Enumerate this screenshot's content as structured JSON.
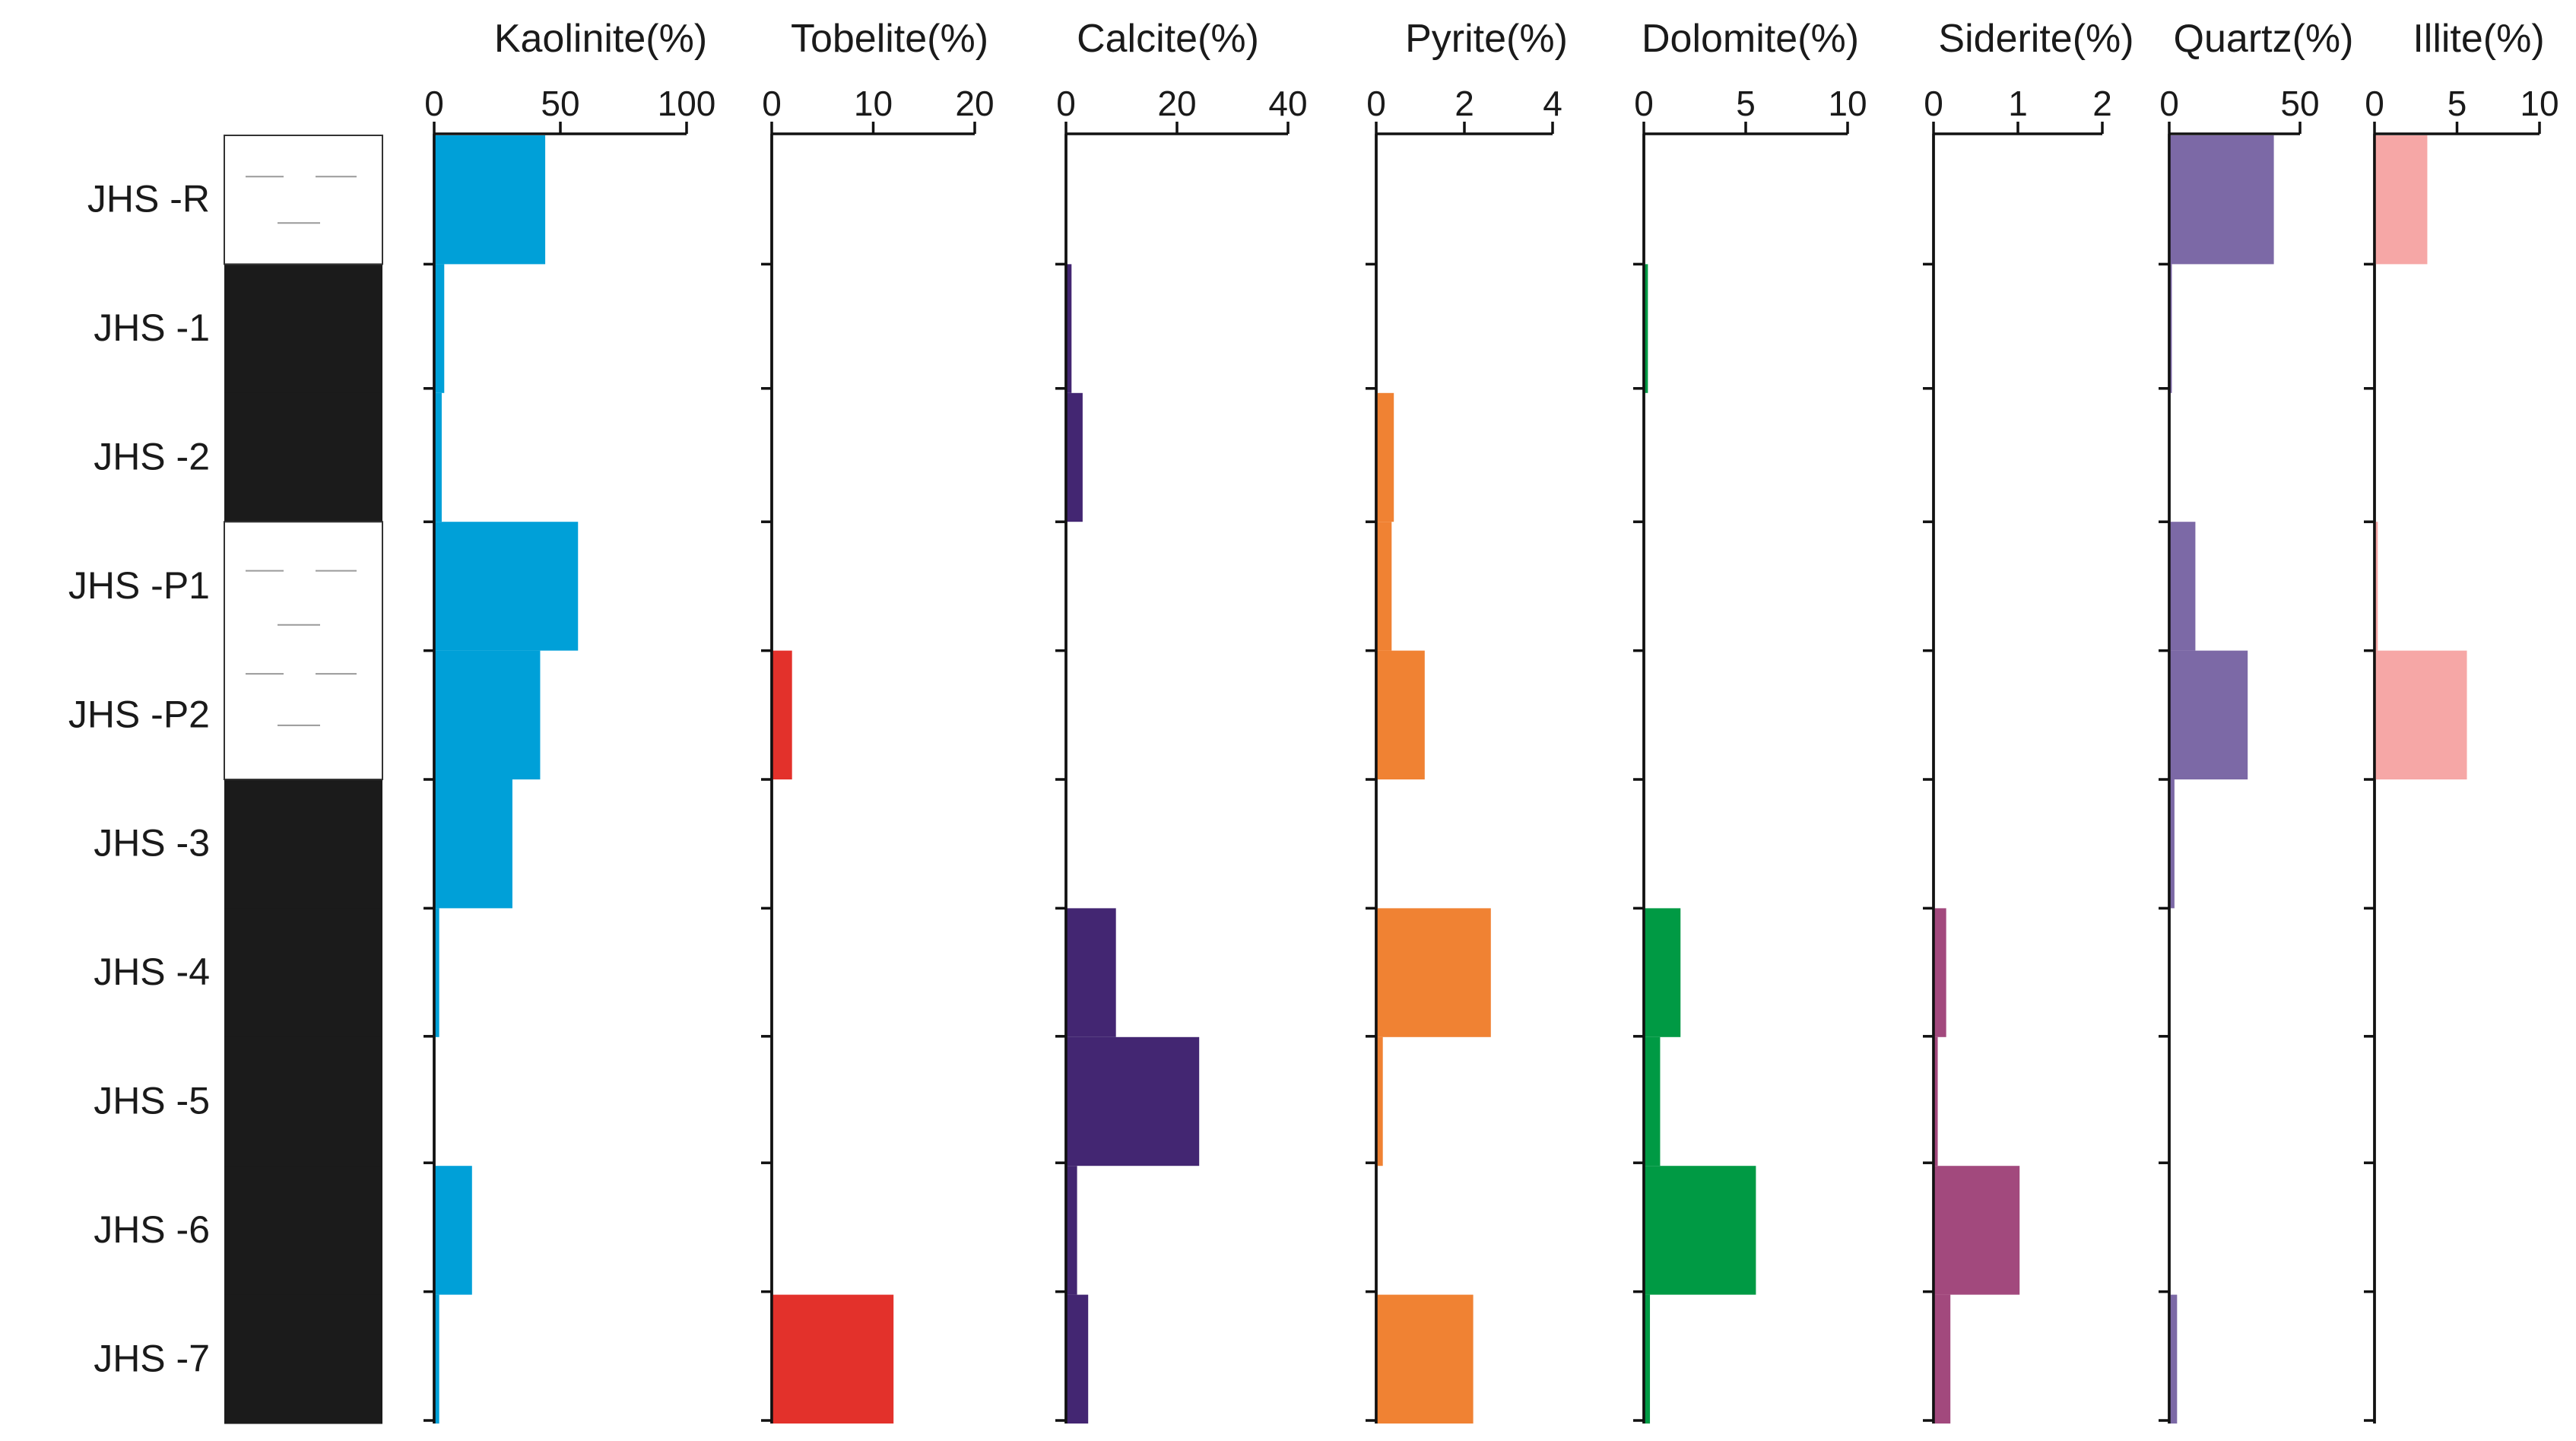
{
  "chart_data": {
    "type": "bar",
    "orientation": "horizontal",
    "samples": [
      "JHS -R",
      "JHS -1",
      "JHS -2",
      "JHS -P1",
      "JHS -P2",
      "JHS -3",
      "JHS -4",
      "JHS -5",
      "JHS -6",
      "JHS -7"
    ],
    "lithology": [
      "mudstone",
      "coal",
      "coal",
      "mudstone",
      "mudstone",
      "coal",
      "coal",
      "coal",
      "coal",
      "coal"
    ],
    "series": [
      {
        "name": "Kaolinite(%)",
        "color": "#00a0d8",
        "xlim": [
          0,
          100
        ],
        "ticks": [
          "0",
          "50",
          "100"
        ],
        "values": [
          44,
          4,
          3,
          57,
          42,
          31,
          2,
          0,
          15,
          2
        ]
      },
      {
        "name": "Tobelite(%)",
        "color": "#e3312b",
        "xlim": [
          0,
          20
        ],
        "ticks": [
          "0",
          "10",
          "20"
        ],
        "values": [
          0,
          0,
          0,
          0,
          2,
          0,
          0,
          0,
          0,
          12
        ]
      },
      {
        "name": "Calcite(%)",
        "color": "#432672",
        "xlim": [
          0,
          40
        ],
        "ticks": [
          "0",
          "20",
          "40"
        ],
        "values": [
          0,
          1,
          3,
          0,
          0,
          0,
          9,
          24,
          2,
          4
        ]
      },
      {
        "name": "Pyrite(%)",
        "color": "#f08233",
        "xlim": [
          0,
          4
        ],
        "ticks": [
          "0",
          "2",
          "4"
        ],
        "values": [
          0,
          0,
          0.4,
          0.35,
          1.1,
          0,
          2.6,
          0.15,
          0,
          2.2
        ]
      },
      {
        "name": "Dolomite(%)",
        "color": "#009a44",
        "xlim": [
          0,
          10
        ],
        "ticks": [
          "0",
          "5",
          "10"
        ],
        "values": [
          0,
          0.2,
          0,
          0,
          0,
          0,
          1.8,
          0.8,
          5.5,
          0.3
        ]
      },
      {
        "name": "Siderite(%)",
        "color": "#a2497d",
        "xlim": [
          0,
          2
        ],
        "ticks": [
          "0",
          "1",
          "2"
        ],
        "values": [
          0,
          0,
          0,
          0,
          0,
          0,
          0.15,
          0.05,
          1.02,
          0.2
        ]
      },
      {
        "name": "Quartz(%)",
        "color": "#7c69a6",
        "xlim": [
          0,
          50
        ],
        "ticks": [
          "0",
          "50"
        ],
        "values": [
          40,
          1,
          0,
          10,
          30,
          2,
          0,
          0,
          0,
          3
        ]
      },
      {
        "name": "Illite(%)",
        "color": "#f6a7a6",
        "xlim": [
          0,
          10
        ],
        "ticks": [
          "0",
          "5",
          "10"
        ],
        "values": [
          3.2,
          0,
          0,
          0.2,
          5.6,
          0,
          0,
          0,
          0,
          0
        ]
      }
    ]
  }
}
